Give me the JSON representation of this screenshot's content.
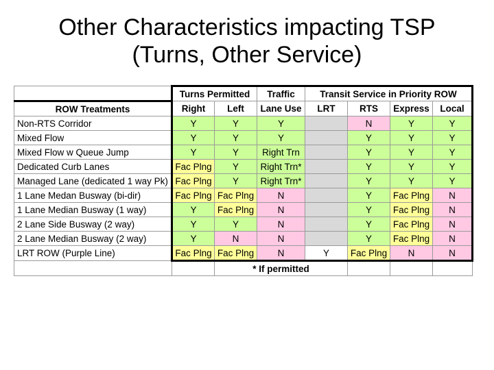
{
  "title": {
    "line1": "Other Characteristics impacting TSP",
    "line2": "(Turns, Other Service)"
  },
  "header": {
    "group_turns": "Turns Permitted",
    "traffic_line1": "Traffic",
    "traffic_line2": "Lane Use",
    "group_transit": "Transit Service in Priority ROW",
    "row_treatments": "ROW Treatments",
    "right": "Right",
    "left": "Left",
    "lrt": "LRT",
    "rts": "RTS",
    "express": "Express",
    "local": "Local"
  },
  "rows": [
    {
      "name": "Non-RTS Corridor",
      "right": "Y",
      "left": "Y",
      "traffic": "Y",
      "lrt": "",
      "rts": "N",
      "express": "Y",
      "local": "Y"
    },
    {
      "name": "Mixed Flow",
      "right": "Y",
      "left": "Y",
      "traffic": "Y",
      "lrt": "",
      "rts": "Y",
      "express": "Y",
      "local": "Y"
    },
    {
      "name": "Mixed Flow w Queue Jump",
      "right": "Y",
      "left": "Y",
      "traffic": "Right Trn",
      "lrt": "",
      "rts": "Y",
      "express": "Y",
      "local": "Y"
    },
    {
      "name": "Dedicated Curb Lanes",
      "right": "Fac Plng",
      "left": "Y",
      "traffic": "Right Trn*",
      "lrt": "",
      "rts": "Y",
      "express": "Y",
      "local": "Y"
    },
    {
      "name": "Managed Lane (dedicated 1 way Pk)",
      "right": "Fac Plng",
      "left": "Y",
      "traffic": "Right Trn*",
      "lrt": "",
      "rts": "Y",
      "express": "Y",
      "local": "Y"
    },
    {
      "name": "1 Lane Medan Busway (bi-dir)",
      "right": "Fac Plng",
      "left": "Fac Plng",
      "traffic": "N",
      "lrt": "",
      "rts": "Y",
      "express": "Fac Plng",
      "local": "N"
    },
    {
      "name": "1 Lane Median Busway (1 way)",
      "right": "Y",
      "left": "Fac Plng",
      "traffic": "N",
      "lrt": "",
      "rts": "Y",
      "express": "Fac Plng",
      "local": "N"
    },
    {
      "name": "2 Lane Side Busway (2 way)",
      "right": "Y",
      "left": "Y",
      "traffic": "N",
      "lrt": "",
      "rts": "Y",
      "express": "Fac Plng",
      "local": "N"
    },
    {
      "name": "2 Lane Median Busway (2 way)",
      "right": "Y",
      "left": "N",
      "traffic": "N",
      "lrt": "",
      "rts": "Y",
      "express": "Fac Plng",
      "local": "N"
    },
    {
      "name": "LRT ROW (Purple Line)",
      "right": "Fac Plng",
      "left": "Fac Plng",
      "traffic": "N",
      "lrt": "Y",
      "rts": "Fac Plng",
      "express": "N",
      "local": "N"
    }
  ],
  "colors": {
    "green": "#ccff99",
    "yellow": "#ffff99",
    "pink": "#ffc9e3",
    "grey": "#d9d9d9"
  },
  "footnote": "* If permitted"
}
